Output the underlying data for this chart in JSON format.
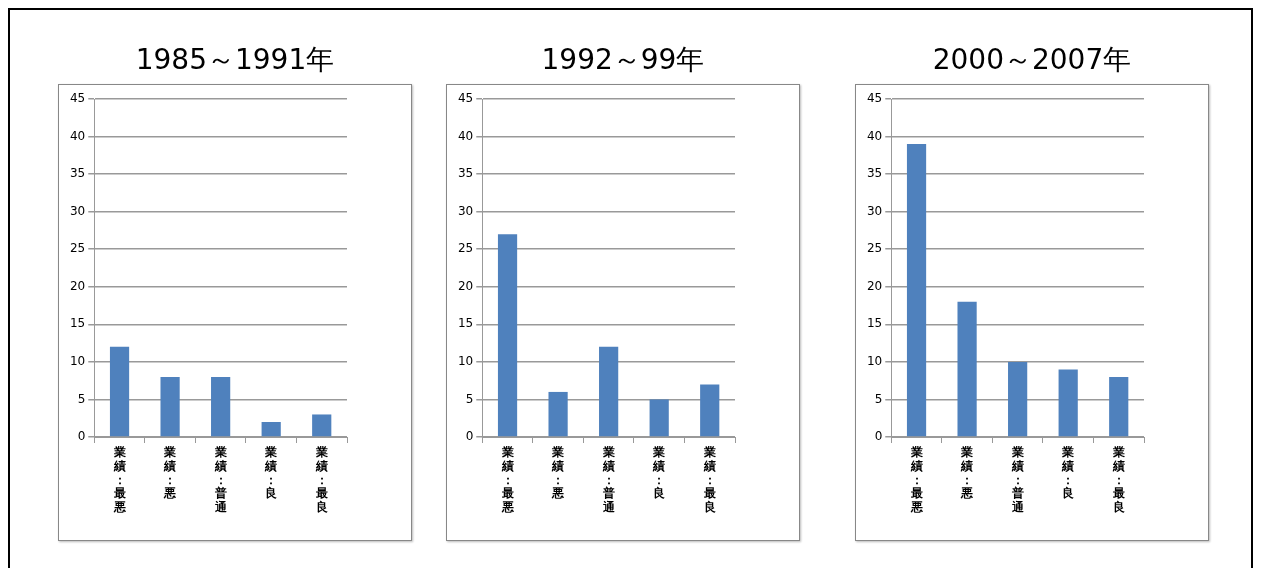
{
  "chart_data": [
    {
      "type": "bar",
      "title": "1985～1991年",
      "categories": [
        "業績：最悪",
        "業績：悪",
        "業績：普通",
        "業績：良",
        "業績：最良"
      ],
      "values": [
        12,
        8,
        8,
        2,
        3
      ],
      "color": "#4f81bd",
      "ylim": [
        0,
        45
      ],
      "yticks": [
        0,
        5,
        10,
        15,
        20,
        25,
        30,
        35,
        40,
        45
      ],
      "grid": "y"
    },
    {
      "type": "bar",
      "title": "1992～99年",
      "categories": [
        "業績：最悪",
        "業績：悪",
        "業績：普通",
        "業績：良",
        "業績：最良"
      ],
      "values": [
        27,
        6,
        12,
        5,
        7
      ],
      "color": "#4f81bd",
      "ylim": [
        0,
        45
      ],
      "yticks": [
        0,
        5,
        10,
        15,
        20,
        25,
        30,
        35,
        40,
        45
      ],
      "grid": "y"
    },
    {
      "type": "bar",
      "title": "2000～2007年",
      "categories": [
        "業績：最悪",
        "業績：悪",
        "業績：普通",
        "業績：良",
        "業績：最良"
      ],
      "values": [
        39,
        18,
        10,
        9,
        8
      ],
      "color": "#4f81bd",
      "ylim": [
        0,
        45
      ],
      "yticks": [
        0,
        5,
        10,
        15,
        20,
        25,
        30,
        35,
        40,
        45
      ],
      "grid": "y"
    }
  ]
}
